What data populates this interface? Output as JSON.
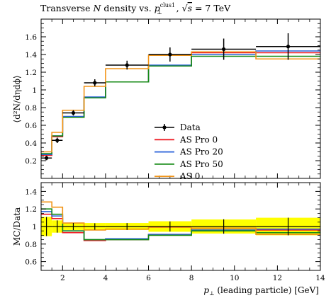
{
  "chart_data": {
    "type": "line",
    "title": "Transverse N density vs. p⊥clus1, √s = 7 TeV",
    "title_parts": {
      "prefix": "Transverse ",
      "var_n": "N",
      "mid": " density vs. ",
      "var_p": "p",
      "sub_p": "⊥",
      "sup_p": "clus1",
      "sep": ", ",
      "sqrt": "√",
      "var_s": "s",
      "suffix": " = 7 TeV"
    },
    "xlabel": "p⊥ (leading particle) [GeV]",
    "xlabel_parts": {
      "var": "p",
      "sub": "⊥",
      "rest": " (leading particle) [GeV]"
    },
    "ylabel": "⟨d²N/dηdϕ⟩",
    "ratio_ylabel": "MC/Data",
    "xlim": [
      1,
      14
    ],
    "ylim": [
      0,
      1.8
    ],
    "ratio_ylim": [
      0.5,
      1.5
    ],
    "xticks": [
      2,
      4,
      6,
      8,
      10,
      12,
      14
    ],
    "yticks": [
      0.2,
      0.4,
      0.6,
      0.8,
      1,
      1.2,
      1.4,
      1.6
    ],
    "ratio_yticks": [
      0.6,
      0.8,
      1,
      1.2,
      1.4
    ],
    "bin_edges": [
      1,
      1.5,
      2,
      3,
      4,
      6,
      8,
      11,
      14
    ],
    "legend_position": "center-right",
    "data": {
      "name": "Data",
      "color": "#000000",
      "x": [
        1.25,
        1.75,
        2.5,
        3.5,
        5,
        7,
        9.5,
        12.5
      ],
      "y": [
        0.23,
        0.43,
        0.74,
        1.08,
        1.28,
        1.4,
        1.46,
        1.49
      ],
      "yerr": [
        0.025,
        0.03,
        0.03,
        0.04,
        0.05,
        0.08,
        0.12,
        0.15
      ]
    },
    "series": [
      {
        "name": "AS Pro 0",
        "color": "#ee1c24",
        "values": [
          0.26,
          0.47,
          0.69,
          0.91,
          1.09,
          1.27,
          1.42,
          1.42
        ],
        "ratio": [
          1.14,
          1.09,
          0.93,
          0.84,
          0.85,
          0.91,
          0.98,
          0.96
        ]
      },
      {
        "name": "AS Pro 20",
        "color": "#2a62d9",
        "values": [
          0.27,
          0.48,
          0.7,
          0.92,
          1.09,
          1.28,
          1.4,
          1.44
        ],
        "ratio": [
          1.17,
          1.12,
          0.95,
          0.85,
          0.86,
          0.91,
          0.96,
          0.97
        ]
      },
      {
        "name": "AS Pro 50",
        "color": "#158a15",
        "values": [
          0.28,
          0.48,
          0.69,
          0.91,
          1.09,
          1.27,
          1.38,
          1.38
        ],
        "ratio": [
          1.2,
          1.14,
          0.95,
          0.85,
          0.85,
          0.9,
          0.95,
          0.93
        ]
      },
      {
        "name": "AS 0",
        "color": "#f29417",
        "values": [
          0.3,
          0.52,
          0.77,
          1.04,
          1.24,
          1.39,
          1.43,
          1.35
        ],
        "ratio": [
          1.28,
          1.22,
          1.04,
          0.96,
          0.97,
          0.99,
          0.98,
          0.91
        ]
      }
    ],
    "data_band": {
      "color": "#ffff00",
      "lo": [
        0.89,
        0.93,
        0.96,
        0.96,
        0.96,
        0.94,
        0.92,
        0.9
      ],
      "hi": [
        1.11,
        1.07,
        1.04,
        1.04,
        1.04,
        1.06,
        1.08,
        1.1
      ]
    }
  }
}
